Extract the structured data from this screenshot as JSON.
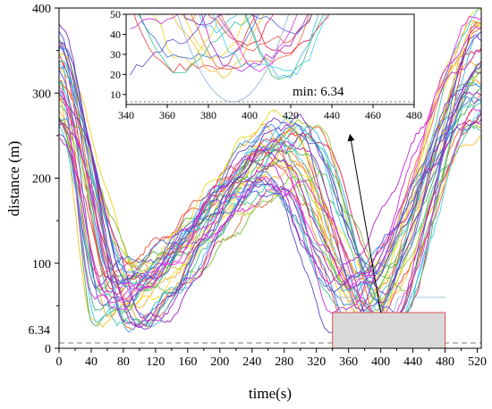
{
  "chart_data": [
    {
      "type": "line",
      "title": "",
      "xlabel": "time(s)",
      "ylabel": "distance (m)",
      "xlim": [
        0,
        525
      ],
      "ylim": [
        0,
        400
      ],
      "xticks": [
        0,
        40,
        80,
        120,
        160,
        200,
        240,
        280,
        320,
        360,
        400,
        440,
        480,
        520
      ],
      "yticks": [
        0,
        100,
        200,
        300,
        400
      ],
      "grid": false,
      "legend": "none",
      "series_count": 40,
      "series_color_gradient": [
        "#e6194b",
        "#f58231",
        "#ffe119",
        "#3cb44b",
        "#42d4f4",
        "#4363d8",
        "#911eb4",
        "#f032e6"
      ],
      "series_style": "distance vs time for each agent, V-shaped descent to ~50 m around 40–120 s, peak ~270 m around 280–320 s, second descent to ~40 m around 360–420 s, rise to ~390 m by 520 s",
      "threshold": {
        "value": 6.34,
        "label": "6.34",
        "style": "dashed",
        "color": "#777777"
      },
      "highlight_box": {
        "x": [
          340,
          480
        ],
        "y": [
          0,
          42
        ],
        "fill": "#d9d9d9",
        "stroke": "#e05050"
      },
      "arrow": {
        "from": [
          400,
          42
        ],
        "to": [
          362,
          250
        ],
        "color": "#000000"
      }
    },
    {
      "type": "line",
      "role": "inset",
      "xlim": [
        340,
        480
      ],
      "ylim": [
        5,
        50
      ],
      "xticks": [
        340,
        360,
        380,
        400,
        420,
        440,
        460,
        480
      ],
      "yticks": [
        10,
        20,
        30,
        40,
        50
      ],
      "grid": false,
      "annotation": "min: 6.34",
      "threshold": {
        "value": 6.34,
        "style": "dotted",
        "color": "#777777"
      },
      "minimum_point": {
        "x": 392,
        "y": 6.34
      }
    }
  ],
  "palette": {
    "axis": "#000000",
    "threshold": "#777777",
    "box_fill": "#d9d9d9",
    "box_stroke": "#e05050"
  }
}
